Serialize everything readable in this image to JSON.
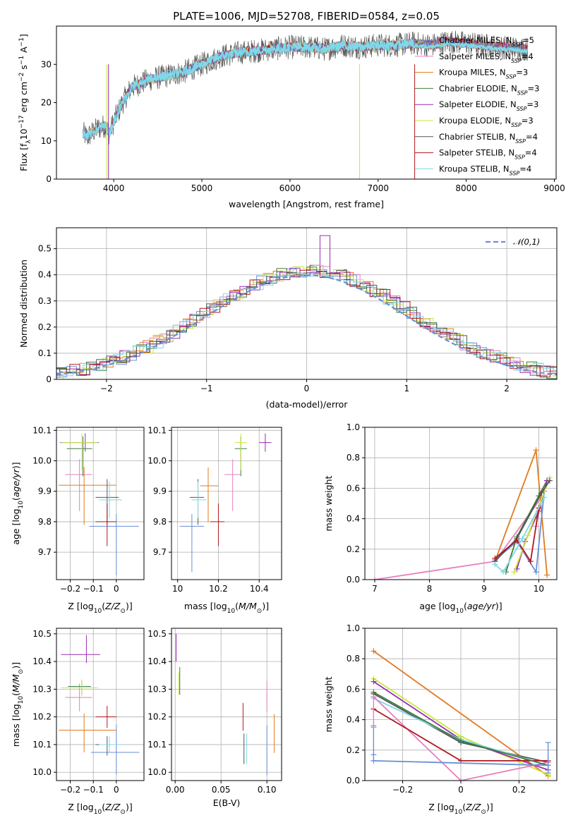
{
  "title": "PLATE=1006, MJD=52708, FIBERID=0584, z=0.05",
  "colors": {
    "chabrier_miles": "#6a8fd8",
    "salpeter_miles": "#e87fbf",
    "kroupa_miles": "#e07b20",
    "chabrier_elodie": "#3f7f3f",
    "salpeter_elodie": "#9a2cb4",
    "kroupa_elodie": "#c8e83a",
    "chabrier_stelib": "#555555",
    "salpeter_stelib": "#b01a20",
    "kroupa_stelib": "#7fd8e8"
  },
  "chart_data": [
    {
      "id": "spectrum",
      "type": "line",
      "xlabel": "wavelength [Angstrom, rest frame]",
      "ylabel": "Flux [f_λ 10^-17 erg cm^-2 s^-1 A^-1]",
      "xlim": [
        3350,
        9020
      ],
      "ylim": [
        0,
        40
      ],
      "xticks": [
        4000,
        5000,
        6000,
        7000,
        8000,
        9000
      ],
      "yticks": [
        0,
        10,
        20,
        30
      ],
      "grid": false,
      "legend_position": "right",
      "continuum": {
        "x": [
          3650,
          3700,
          3800,
          3900,
          3950,
          4000,
          4100,
          4200,
          4300,
          4400,
          4600,
          4800,
          5000,
          5200,
          5400,
          5600,
          5800,
          6000,
          6200,
          6400,
          6600,
          6800,
          7000,
          7200,
          7400,
          7600,
          7800,
          8000,
          8200,
          8400,
          8700
        ],
        "y": [
          12,
          11,
          13,
          14,
          12,
          15,
          20,
          24,
          25,
          26,
          27,
          28,
          30,
          32,
          33,
          33.5,
          34,
          34.5,
          34.5,
          34,
          35,
          34.5,
          35,
          35,
          35.5,
          35,
          36,
          35.5,
          35,
          34.5,
          34
        ]
      },
      "series": [
        {
          "name": "Chabrier MILES, N_SSP=5",
          "color_key": "chabrier_miles"
        },
        {
          "name": "Salpeter MILES, N_SSP=4",
          "color_key": "salpeter_miles"
        },
        {
          "name": "Kroupa MILES, N_SSP=3",
          "color_key": "kroupa_miles"
        },
        {
          "name": "Chabrier ELODIE, N_SSP=3",
          "color_key": "chabrier_elodie"
        },
        {
          "name": "Salpeter ELODIE, N_SSP=3",
          "color_key": "salpeter_elodie"
        },
        {
          "name": "Kroupa ELODIE, N_SSP=3",
          "color_key": "kroupa_elodie"
        },
        {
          "name": "Chabrier STELIB, N_SSP=4",
          "color_key": "chabrier_stelib"
        },
        {
          "name": "Salpeter STELIB, N_SSP=4",
          "color_key": "salpeter_stelib"
        },
        {
          "name": "Kroupa STELIB, N_SSP=4",
          "color_key": "kroupa_stelib"
        }
      ]
    },
    {
      "id": "residuals",
      "type": "histogram",
      "xlabel": "(data-model)/error",
      "ylabel": "Normed distribution",
      "xlim": [
        -2.5,
        2.5
      ],
      "ylim": [
        0,
        0.58
      ],
      "xticks": [
        -2,
        -1,
        0,
        1,
        2
      ],
      "yticks": [
        0.0,
        0.1,
        0.2,
        0.3,
        0.4,
        0.5
      ],
      "grid": true,
      "legend_position": "top-right",
      "legend": "𝒩(0,1)",
      "gaussian": {
        "mean": 0,
        "sigma": 1,
        "color_key": "chabrier_miles"
      },
      "bin_width": 0.1
    },
    {
      "id": "age_vs_z",
      "type": "errorbar",
      "xlabel": "Z [log10(Z/Z⊙)]",
      "ylabel": "age  [log10(age/yr)]",
      "xlim": [
        -0.26,
        0.12
      ],
      "ylim": [
        9.61,
        10.11
      ],
      "xticks": [
        -0.2,
        -0.1,
        0.0
      ],
      "yticks": [
        9.7,
        9.8,
        9.9,
        10.0,
        10.1
      ],
      "grid": true,
      "points": [
        {
          "color_key": "chabrier_miles",
          "x": 0.0,
          "y": 9.785,
          "xerr": [
            0.118,
            0.098
          ],
          "yerr": [
            0.16,
            0.04
          ]
        },
        {
          "color_key": "salpeter_miles",
          "x": -0.16,
          "y": 9.955,
          "xerr": [
            0.062,
            0.055
          ],
          "yerr": [
            0.12,
            0.05
          ]
        },
        {
          "color_key": "kroupa_miles",
          "x": -0.14,
          "y": 9.92,
          "xerr": [
            0.11,
            0.14
          ],
          "yerr": [
            0.13,
            0.06
          ]
        },
        {
          "color_key": "chabrier_elodie",
          "x": -0.145,
          "y": 10.04,
          "xerr": [
            0.07,
            0.04
          ],
          "yerr": [
            0.09,
            0.04
          ]
        },
        {
          "color_key": "salpeter_elodie",
          "x": -0.135,
          "y": 10.06,
          "xerr": [
            0.11,
            0.06
          ],
          "yerr": [
            0.03,
            0.03
          ]
        },
        {
          "color_key": "kroupa_elodie",
          "x": -0.15,
          "y": 10.06,
          "xerr": [
            0.09,
            0.07
          ],
          "yerr": [
            0.09,
            0.03
          ]
        },
        {
          "color_key": "chabrier_stelib",
          "x": -0.04,
          "y": 9.88,
          "xerr": [
            0.05,
            0.05
          ],
          "yerr": [
            0.09,
            0.06
          ]
        },
        {
          "color_key": "salpeter_stelib",
          "x": -0.04,
          "y": 9.8,
          "xerr": [
            0.05,
            0.04
          ],
          "yerr": [
            0.08,
            0.06
          ]
        },
        {
          "color_key": "kroupa_stelib",
          "x": -0.03,
          "y": 9.872,
          "xerr": [
            0.045,
            0.055
          ],
          "yerr": [
            0.06,
            0.06
          ]
        }
      ]
    },
    {
      "id": "age_vs_mass",
      "type": "errorbar",
      "xlabel": "mass [log10(M/M⊙)]",
      "ylabel": "",
      "xlim": [
        9.97,
        10.51
      ],
      "ylim": [
        9.61,
        10.11
      ],
      "xticks": [
        10.0,
        10.2,
        10.4
      ],
      "yticks": [
        9.7,
        9.8,
        9.9,
        10.0,
        10.1
      ],
      "grid": true,
      "points": [
        {
          "color_key": "chabrier_miles",
          "x": 10.07,
          "y": 9.785,
          "xerr": [
            0.06,
            0.06
          ],
          "yerr": [
            0.15,
            0.04
          ]
        },
        {
          "color_key": "salpeter_miles",
          "x": 10.27,
          "y": 9.955,
          "xerr": [
            0.04,
            0.04
          ],
          "yerr": [
            0.12,
            0.05
          ]
        },
        {
          "color_key": "kroupa_miles",
          "x": 10.15,
          "y": 9.918,
          "xerr": [
            0.04,
            0.05
          ],
          "yerr": [
            0.12,
            0.06
          ]
        },
        {
          "color_key": "chabrier_elodie",
          "x": 10.31,
          "y": 10.04,
          "xerr": [
            0.03,
            0.03
          ],
          "yerr": [
            0.09,
            0.04
          ]
        },
        {
          "color_key": "salpeter_elodie",
          "x": 10.43,
          "y": 10.06,
          "xerr": [
            0.03,
            0.03
          ],
          "yerr": [
            0.03,
            0.03
          ]
        },
        {
          "color_key": "kroupa_elodie",
          "x": 10.31,
          "y": 10.06,
          "xerr": [
            0.03,
            0.03
          ],
          "yerr": [
            0.09,
            0.03
          ]
        },
        {
          "color_key": "chabrier_stelib",
          "x": 10.1,
          "y": 9.88,
          "xerr": [
            0.04,
            0.03
          ],
          "yerr": [
            0.09,
            0.06
          ]
        },
        {
          "color_key": "salpeter_stelib",
          "x": 10.2,
          "y": 9.8,
          "xerr": [
            0.04,
            0.03
          ],
          "yerr": [
            0.08,
            0.06
          ]
        },
        {
          "color_key": "kroupa_stelib",
          "x": 10.1,
          "y": 9.872,
          "xerr": [
            0.03,
            0.04
          ],
          "yerr": [
            0.06,
            0.06
          ]
        }
      ]
    },
    {
      "id": "mass_weight_vs_age",
      "type": "line",
      "xlabel": "age  [log10(age/yr)]",
      "ylabel": "mass weight",
      "xlim": [
        6.82,
        10.33
      ],
      "ylim": [
        0,
        1.0
      ],
      "xticks": [
        7,
        8,
        9,
        10
      ],
      "yticks": [
        0.0,
        0.2,
        0.4,
        0.6,
        0.8,
        1.0
      ],
      "grid": true,
      "series": [
        {
          "color_key": "salpeter_miles",
          "x": [
            7.0,
            9.2,
            10.05,
            9.95
          ],
          "y": [
            0.0,
            0.12,
            0.54,
            0.35
          ]
        },
        {
          "color_key": "kroupa_miles",
          "x": [
            9.2,
            9.95,
            10.15
          ],
          "y": [
            0.12,
            0.85,
            0.03
          ]
        },
        {
          "color_key": "chabrier_miles",
          "x": [
            9.2,
            9.6,
            9.95,
            10.1
          ],
          "y": [
            0.13,
            0.25,
            0.05,
            0.58
          ]
        },
        {
          "color_key": "chabrier_elodie",
          "x": [
            9.4,
            9.6,
            10.0,
            10.15
          ],
          "y": [
            0.05,
            0.28,
            0.55,
            0.65
          ]
        },
        {
          "color_key": "salpeter_elodie",
          "x": [
            9.6,
            9.75,
            10.0,
            10.15
          ],
          "y": [
            0.07,
            0.25,
            0.45,
            0.65
          ]
        },
        {
          "color_key": "kroupa_elodie",
          "x": [
            9.55,
            9.8,
            10.2
          ],
          "y": [
            0.05,
            0.29,
            0.67
          ]
        },
        {
          "color_key": "chabrier_stelib",
          "x": [
            9.2,
            9.6,
            10.05,
            10.2
          ],
          "y": [
            0.12,
            0.27,
            0.57,
            0.65
          ]
        },
        {
          "color_key": "salpeter_stelib",
          "x": [
            9.2,
            9.6,
            9.85,
            10.0
          ],
          "y": [
            0.14,
            0.26,
            0.12,
            0.47
          ]
        },
        {
          "color_key": "kroupa_stelib",
          "x": [
            9.2,
            9.35,
            9.7,
            10.1
          ],
          "y": [
            0.1,
            0.05,
            0.27,
            0.54
          ]
        }
      ]
    },
    {
      "id": "mass_vs_z",
      "type": "errorbar",
      "xlabel": "Z [log10(Z/Z⊙)]",
      "ylabel": "mass [log10(M/M⊙)]",
      "xlim": [
        -0.26,
        0.12
      ],
      "ylim": [
        9.97,
        10.52
      ],
      "xticks": [
        -0.2,
        -0.1,
        0.0
      ],
      "yticks": [
        10.0,
        10.1,
        10.2,
        10.3,
        10.4,
        10.5
      ],
      "grid": true,
      "points": [
        {
          "color_key": "chabrier_miles",
          "x": 0.0,
          "y": 10.072,
          "xerr": [
            0.11,
            0.1
          ],
          "yerr": [
            0.08,
            0.1
          ]
        },
        {
          "color_key": "salpeter_miles",
          "x": -0.16,
          "y": 10.27,
          "xerr": [
            0.062,
            0.055
          ],
          "yerr": [
            0.05,
            0.05
          ]
        },
        {
          "color_key": "kroupa_miles",
          "x": -0.14,
          "y": 10.152,
          "xerr": [
            0.11,
            0.14
          ],
          "yerr": [
            0.08,
            0.06
          ]
        },
        {
          "color_key": "chabrier_elodie",
          "x": -0.15,
          "y": 10.31,
          "xerr": [
            0.06,
            0.04
          ],
          "yerr": [
            0.03,
            0.02
          ]
        },
        {
          "color_key": "salpeter_elodie",
          "x": -0.13,
          "y": 10.425,
          "xerr": [
            0.11,
            0.06
          ],
          "yerr": [
            0.03,
            0.07
          ]
        },
        {
          "color_key": "kroupa_elodie",
          "x": -0.15,
          "y": 10.305,
          "xerr": [
            0.09,
            0.07
          ],
          "yerr": [
            0.03,
            0.03
          ]
        },
        {
          "color_key": "chabrier_stelib",
          "x": -0.04,
          "y": 10.1,
          "xerr": [
            0.05,
            0.05
          ],
          "yerr": [
            0.04,
            0.03
          ]
        },
        {
          "color_key": "salpeter_stelib",
          "x": -0.04,
          "y": 10.2,
          "xerr": [
            0.05,
            0.04
          ],
          "yerr": [
            0.04,
            0.04
          ]
        },
        {
          "color_key": "kroupa_stelib",
          "x": -0.03,
          "y": 10.1,
          "xerr": [
            0.045,
            0.055
          ],
          "yerr": [
            0.03,
            0.03
          ]
        }
      ]
    },
    {
      "id": "mass_vs_ebv",
      "type": "errorbar",
      "xlabel": "E(B-V)",
      "ylabel": "",
      "xlim": [
        -0.004,
        0.116
      ],
      "ylim": [
        9.97,
        10.52
      ],
      "xticks": [
        0.0,
        0.05,
        0.1
      ],
      "xticklabels": [
        "0.00",
        "0.05",
        "0.10"
      ],
      "yticks": [
        10.0,
        10.1,
        10.2,
        10.3,
        10.4,
        10.5
      ],
      "grid": true,
      "points": [
        {
          "color_key": "chabrier_miles",
          "x": 0.1,
          "y": 10.07,
          "xerr": [
            0,
            0
          ],
          "yerr": [
            0.08,
            0.1
          ]
        },
        {
          "color_key": "salpeter_miles",
          "x": 0.1,
          "y": 10.27,
          "xerr": [
            0,
            0
          ],
          "yerr": [
            0.05,
            0.06
          ]
        },
        {
          "color_key": "kroupa_miles",
          "x": 0.108,
          "y": 10.15,
          "xerr": [
            0,
            0
          ],
          "yerr": [
            0.08,
            0.06
          ]
        },
        {
          "color_key": "chabrier_elodie",
          "x": 0.005,
          "y": 10.32,
          "xerr": [
            0,
            0
          ],
          "yerr": [
            0.04,
            0.06
          ]
        },
        {
          "color_key": "salpeter_elodie",
          "x": 0.001,
          "y": 10.43,
          "xerr": [
            0,
            0
          ],
          "yerr": [
            0.03,
            0.07
          ]
        },
        {
          "color_key": "kroupa_elodie",
          "x": 0.004,
          "y": 10.31,
          "xerr": [
            0,
            0
          ],
          "yerr": [
            0.03,
            0.05
          ]
        },
        {
          "color_key": "chabrier_stelib",
          "x": 0.075,
          "y": 10.1,
          "xerr": [
            0,
            0
          ],
          "yerr": [
            0.07,
            0.04
          ]
        },
        {
          "color_key": "salpeter_stelib",
          "x": 0.074,
          "y": 10.2,
          "xerr": [
            0,
            0
          ],
          "yerr": [
            0.05,
            0.05
          ]
        },
        {
          "color_key": "kroupa_stelib",
          "x": 0.078,
          "y": 10.1,
          "xerr": [
            0,
            0
          ],
          "yerr": [
            0.07,
            0.04
          ]
        }
      ]
    },
    {
      "id": "mass_weight_vs_z",
      "type": "line",
      "xlabel": "Z [log10(Z/Z⊙)]",
      "ylabel": "mass weight",
      "xlim": [
        -0.33,
        0.33
      ],
      "ylim": [
        0,
        1.0
      ],
      "xticks": [
        -0.2,
        0.0,
        0.2
      ],
      "yticks": [
        0.0,
        0.2,
        0.4,
        0.6,
        0.8,
        1.0
      ],
      "grid": true,
      "series": [
        {
          "color_key": "kroupa_miles",
          "x": [
            -0.3,
            0.3
          ],
          "y": [
            0.85,
            0.03
          ]
        },
        {
          "color_key": "kroupa_elodie",
          "x": [
            -0.3,
            0.0,
            0.3
          ],
          "y": [
            0.67,
            0.29,
            0.04
          ]
        },
        {
          "color_key": "salpeter_elodie",
          "x": [
            -0.3,
            0.0,
            0.3
          ],
          "y": [
            0.65,
            0.27,
            0.07
          ]
        },
        {
          "color_key": "chabrier_stelib",
          "x": [
            -0.3,
            0.0,
            0.3
          ],
          "y": [
            0.57,
            0.25,
            0.12
          ]
        },
        {
          "color_key": "kroupa_stelib",
          "x": [
            -0.3,
            0.0,
            0.3
          ],
          "y": [
            0.54,
            0.27,
            0.1
          ]
        },
        {
          "color_key": "salpeter_miles",
          "x": [
            -0.3,
            0.0,
            0.3
          ],
          "y": [
            0.55,
            0.0,
            0.12
          ]
        },
        {
          "color_key": "salpeter_stelib",
          "x": [
            -0.3,
            0.0,
            0.3
          ],
          "y": [
            0.47,
            0.13,
            0.13
          ]
        },
        {
          "color_key": "chabrier_elodie",
          "x": [
            -0.3,
            0.0,
            0.3
          ],
          "y": [
            0.58,
            0.26,
            0.1
          ]
        },
        {
          "color_key": "chabrier_miles",
          "x": [
            -0.3,
            0.3
          ],
          "y": [
            0.13,
            0.1
          ]
        }
      ],
      "vertical_errors": [
        {
          "color_key": "chabrier_miles",
          "x": -0.3,
          "y": [
            0.13,
            0.36,
            0.17
          ]
        },
        {
          "color_key": "salpeter_miles",
          "x": -0.3,
          "y": [
            0.35,
            0.55
          ]
        },
        {
          "color_key": "chabrier_miles",
          "x": 0.3,
          "y": [
            0.05,
            0.25
          ]
        }
      ]
    }
  ]
}
